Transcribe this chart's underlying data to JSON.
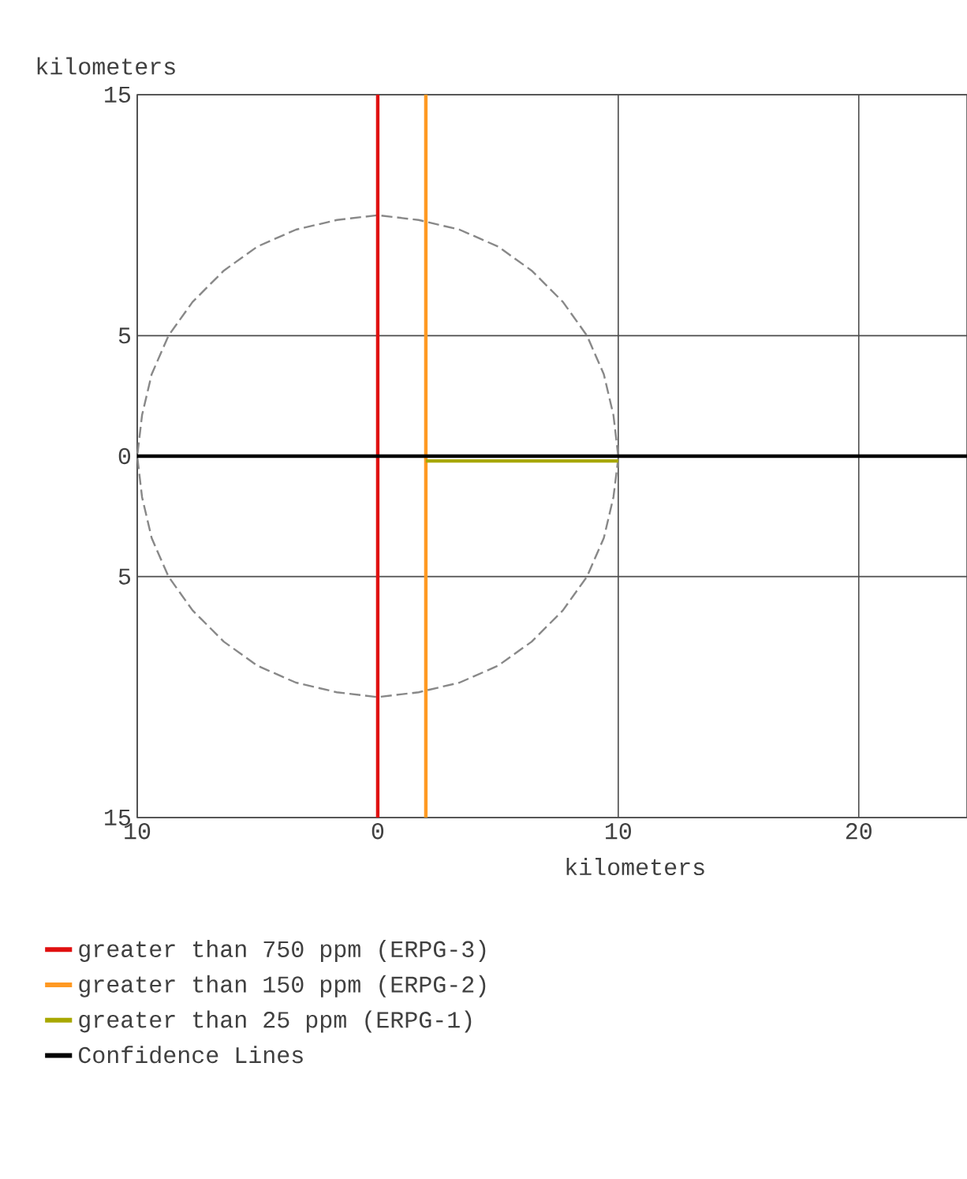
{
  "chart_data": {
    "type": "line",
    "xlabel": "kilometers",
    "ylabel": "kilometers",
    "xlim": [
      -10,
      24.5
    ],
    "ylim": [
      -15,
      15
    ],
    "xticks": [
      {
        "value": -10,
        "label": "10"
      },
      0,
      10,
      20
    ],
    "yticks": [
      {
        "value": -15,
        "label": "15"
      },
      {
        "value": -5,
        "label": "5"
      },
      0,
      5,
      15
    ],
    "grid": true,
    "legend": "bottom",
    "series": [
      {
        "color": "#888888",
        "line_style": "dashed",
        "x": [
          10,
          9.8,
          9.4,
          8.7,
          7.7,
          6.4,
          5,
          3.4,
          1.7,
          0,
          -1.7,
          -3.4,
          -5,
          -6.4,
          -7.7,
          -8.7,
          -9.4,
          -9.8,
          -10,
          -9.8,
          -9.4,
          -8.7,
          -7.7,
          -6.4,
          -5,
          -3.4,
          -1.7,
          0,
          1.7,
          3.4,
          5,
          6.4,
          7.7,
          8.7,
          9.4,
          9.8,
          10
        ],
        "values": [
          0,
          1.7,
          3.4,
          5,
          6.4,
          7.7,
          8.7,
          9.4,
          9.8,
          10,
          9.8,
          9.4,
          8.7,
          7.7,
          6.4,
          5,
          3.4,
          1.7,
          0,
          -1.7,
          -3.4,
          -5,
          -6.4,
          -7.7,
          -8.7,
          -9.4,
          -9.8,
          -10,
          -9.8,
          -9.4,
          -8.7,
          -7.7,
          -6.4,
          -5,
          -3.4,
          -1.7,
          -0.1
        ]
      },
      {
        "name": "greater than 750 ppm (ERPG-3)",
        "color": "#e01010",
        "x": [
          0,
          0
        ],
        "values": [
          -15,
          15
        ]
      },
      {
        "name": "greater than 150 ppm (ERPG-2)",
        "color": "#ff9922",
        "x": [
          2,
          2
        ],
        "values": [
          -15,
          15
        ]
      },
      {
        "name": "greater than 25 ppm (ERPG-1)",
        "color": "#a8a800",
        "x": [
          2,
          10
        ],
        "values": [
          -0.2,
          -0.2
        ]
      },
      {
        "name": "Confidence Lines",
        "color": "#000000",
        "x": [
          -10,
          24.5
        ],
        "values": [
          0,
          0
        ]
      }
    ]
  }
}
